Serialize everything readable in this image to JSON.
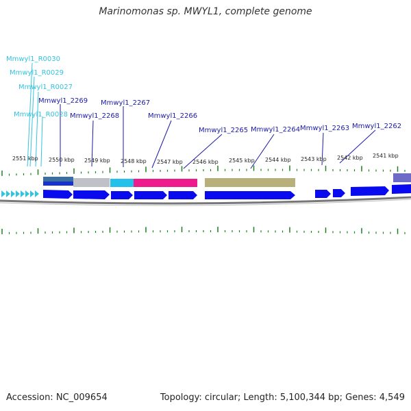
{
  "title": "Marinomonas sp. MWYL1, complete genome",
  "accession": "Accession: NC_009654",
  "summary": "Topology: circular; Length: 5,100,344 bp; Genes: 4,549",
  "colors": {
    "rna_label": "#33c3dd",
    "gene_label": "#1a1aa8",
    "tick": "#1e7f1e",
    "gene_arrow": "#0a0aee",
    "backbone": "#777777"
  },
  "kbp_ticks": [
    "2551 kbp",
    "2550 kbp",
    "2549 kbp",
    "2548 kbp",
    "2547 kbp",
    "2546 kbp",
    "2545 kbp",
    "2544 kbp",
    "2543 kbp",
    "2542 kbp",
    "2541 kbp"
  ],
  "rna_labels": [
    "Mmwyl1_R0030",
    "Mmwyl1_R0029",
    "Mmwyl1_R0027",
    "Mmwyl1_R0028"
  ],
  "gene_labels": [
    "Mmwyl1_2269",
    "Mmwyl1_2268",
    "Mmwyl1_2267",
    "Mmwyl1_2266",
    "Mmwyl1_2265",
    "Mmwyl1_2264",
    "Mmwyl1_2263",
    "Mmwyl1_2262"
  ],
  "feature_colors": [
    "#3a6fa0",
    "#c0c0c8",
    "#22c0ea",
    "#ee1b8c",
    "#ee1b8c",
    "#b7b07a",
    "#6c6cc8"
  ]
}
